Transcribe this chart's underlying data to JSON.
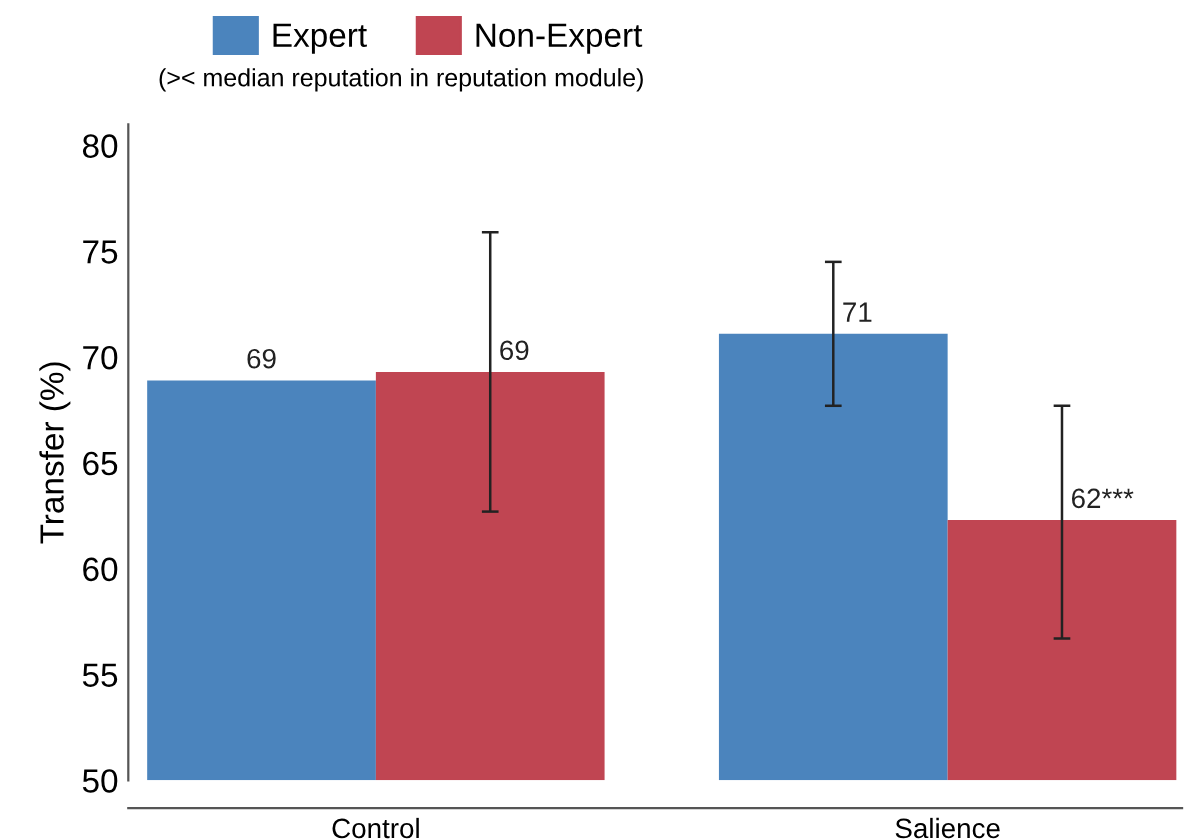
{
  "chart_data": {
    "type": "bar",
    "subtitle": "(>< median reputation in reputation module)",
    "ylabel": "Transfer (%)",
    "categories": [
      "Control",
      "Salience"
    ],
    "series": [
      {
        "name": "Expert",
        "color": "#4b84bd",
        "values": [
          68.9,
          71.1
        ],
        "errors": [
          null,
          [
            67.7,
            74.5
          ]
        ],
        "value_labels": [
          "69",
          "71"
        ]
      },
      {
        "name": "Non-Expert",
        "color": "#c04552",
        "values": [
          69.3,
          62.3
        ],
        "errors": [
          [
            62.7,
            75.9
          ],
          [
            56.7,
            67.7
          ]
        ],
        "value_labels": [
          "69",
          "62***"
        ]
      }
    ],
    "ylim": [
      50,
      81
    ],
    "yticks": [
      50,
      55,
      60,
      65,
      70,
      75,
      80
    ],
    "grid": false,
    "legend": "top left"
  }
}
